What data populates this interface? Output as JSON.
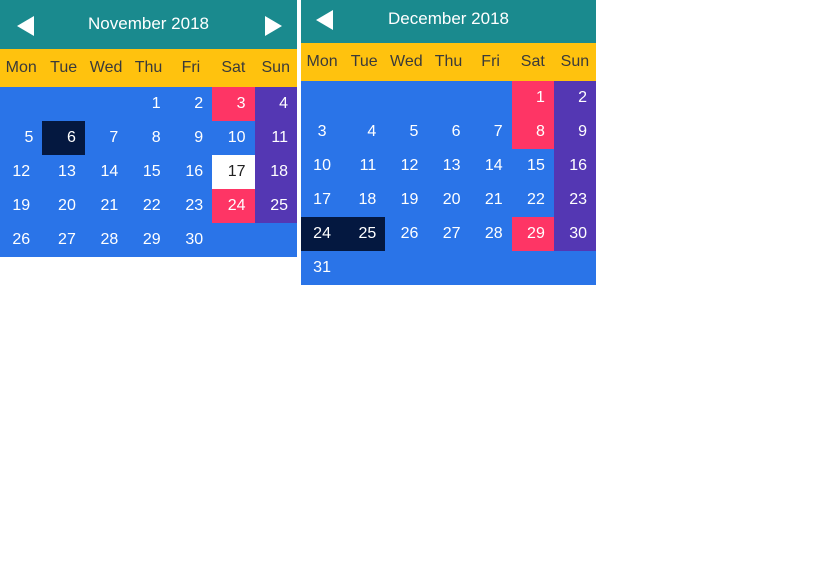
{
  "colors": {
    "header": "#1a8a8e",
    "weekday_bar": "#ffc20e",
    "cell": "#2a74e8",
    "saturday": "#fe3565",
    "sunday": "#5437b3",
    "selected": "#041840",
    "today": "#ffffff"
  },
  "icons": {
    "prev": "left-triangle-arrow",
    "next": "right-triangle-arrow"
  },
  "weekdays": [
    "Mon",
    "Tue",
    "Wed",
    "Thu",
    "Fri",
    "Sat",
    "Sun"
  ],
  "calendars": [
    {
      "title": "November 2018",
      "start_offset": 3,
      "weeks": [
        [
          "",
          "",
          "",
          "1",
          "2",
          "3",
          "4"
        ],
        [
          "5",
          "6",
          "7",
          "8",
          "9",
          "10",
          "11"
        ],
        [
          "12",
          "13",
          "14",
          "15",
          "16",
          "17",
          "18"
        ],
        [
          "19",
          "20",
          "21",
          "22",
          "23",
          "24",
          "25"
        ],
        [
          "26",
          "27",
          "28",
          "29",
          "30",
          "",
          ""
        ]
      ],
      "styles": {
        "3": "saturday",
        "4": "sunday",
        "6": "selected",
        "11": "sunday",
        "17": "today",
        "18": "sunday",
        "24": "saturday",
        "25": "sunday"
      }
    },
    {
      "title": "December 2018",
      "weeks": [
        [
          "",
          "",
          "",
          "",
          "",
          "1",
          "2"
        ],
        [
          "3",
          "4",
          "5",
          "6",
          "7",
          "8",
          "9"
        ],
        [
          "10",
          "11",
          "12",
          "13",
          "14",
          "15",
          "16"
        ],
        [
          "17",
          "18",
          "19",
          "20",
          "21",
          "22",
          "23"
        ],
        [
          "24",
          "25",
          "26",
          "27",
          "28",
          "29",
          "30"
        ],
        [
          "31",
          "",
          "",
          "",
          "",
          "",
          ""
        ]
      ],
      "styles": {
        "1": "saturday",
        "2": "sunday",
        "8": "saturday",
        "9": "sunday",
        "16": "sunday",
        "23": "sunday",
        "24": "selected",
        "25": "selected",
        "29": "saturday",
        "30": "sunday"
      }
    }
  ]
}
